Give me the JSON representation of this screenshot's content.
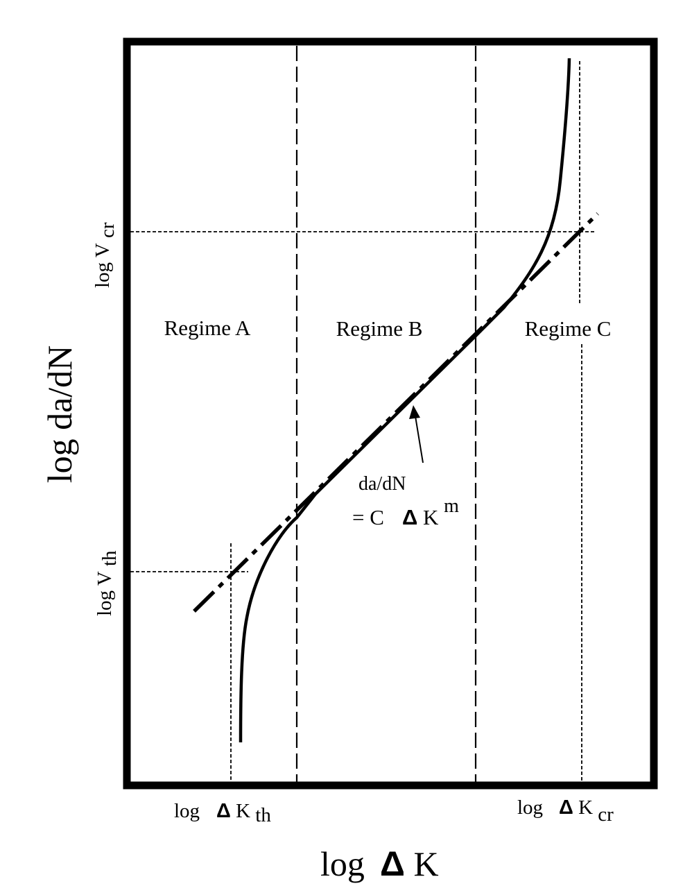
{
  "chart_data": {
    "type": "line",
    "title": "",
    "xlabel": "log ΔK",
    "ylabel": "log da/dN",
    "regimes": [
      "Regime A",
      "Regime B",
      "Regime C"
    ],
    "x_markers": [
      {
        "prefix": "log",
        "symbol": "Δ",
        "base": "K",
        "sub": "th"
      },
      {
        "prefix": "log",
        "symbol": "Δ",
        "base": "K",
        "sub": "cr"
      }
    ],
    "y_markers": [
      {
        "prefix": "log V",
        "sub": "cr"
      },
      {
        "prefix": "log V",
        "sub": "th"
      }
    ],
    "annotation": {
      "line1": "da/dN",
      "line2_prefix": "= C",
      "symbol": "Δ",
      "base": "K",
      "exponent": "m"
    },
    "series": [
      {
        "style": "solid"
      },
      {
        "style": "dash-dot"
      }
    ],
    "colors": {
      "line": "#000000",
      "background": "#ffffff"
    }
  }
}
